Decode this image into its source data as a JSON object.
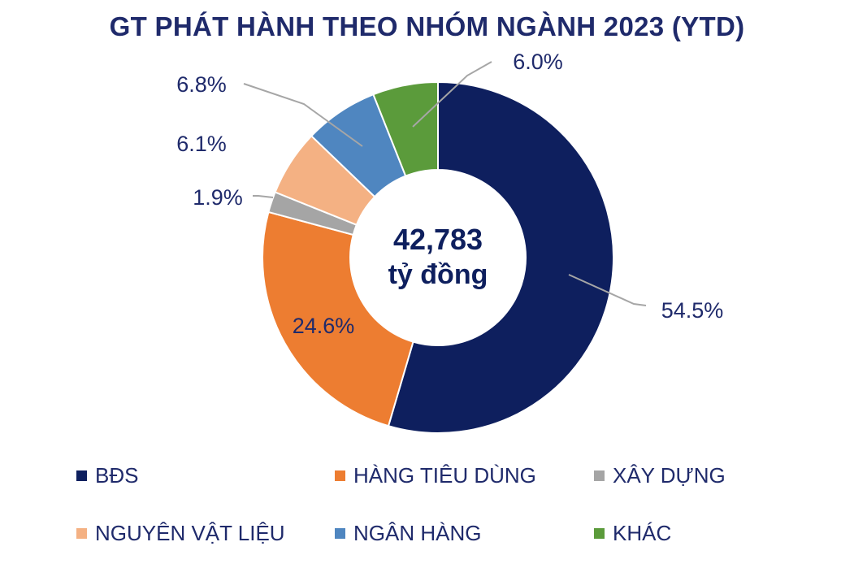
{
  "title": "GT PHÁT HÀNH THEO NHÓM NGÀNH 2023 (YTD)",
  "center_value": "42,783",
  "center_unit": "tỷ đồng",
  "chart_data": {
    "type": "pie",
    "title": "GT PHÁT HÀNH THEO NHÓM NGÀNH 2023 (YTD)",
    "total_label": "42,783 tỷ đồng",
    "legend_position": "bottom",
    "slices": [
      {
        "name": "BĐS",
        "value": 54.5,
        "label": "54.5%",
        "color": "#0e1f5e"
      },
      {
        "name": "HÀNG TIÊU DÙNG",
        "value": 24.6,
        "label": "24.6%",
        "color": "#ed7d31"
      },
      {
        "name": "XÂY DỰNG",
        "value": 1.9,
        "label": "1.9%",
        "color": "#a5a5a5"
      },
      {
        "name": "NGUYÊN VẬT LIỆU",
        "value": 6.1,
        "label": "6.1%",
        "color": "#f4b183"
      },
      {
        "name": "NGÂN HÀNG",
        "value": 6.8,
        "label": "6.8%",
        "color": "#4f86c0"
      },
      {
        "name": "KHÁC",
        "value": 6.0,
        "label": "6.0%",
        "color": "#5b9b3b"
      }
    ]
  }
}
